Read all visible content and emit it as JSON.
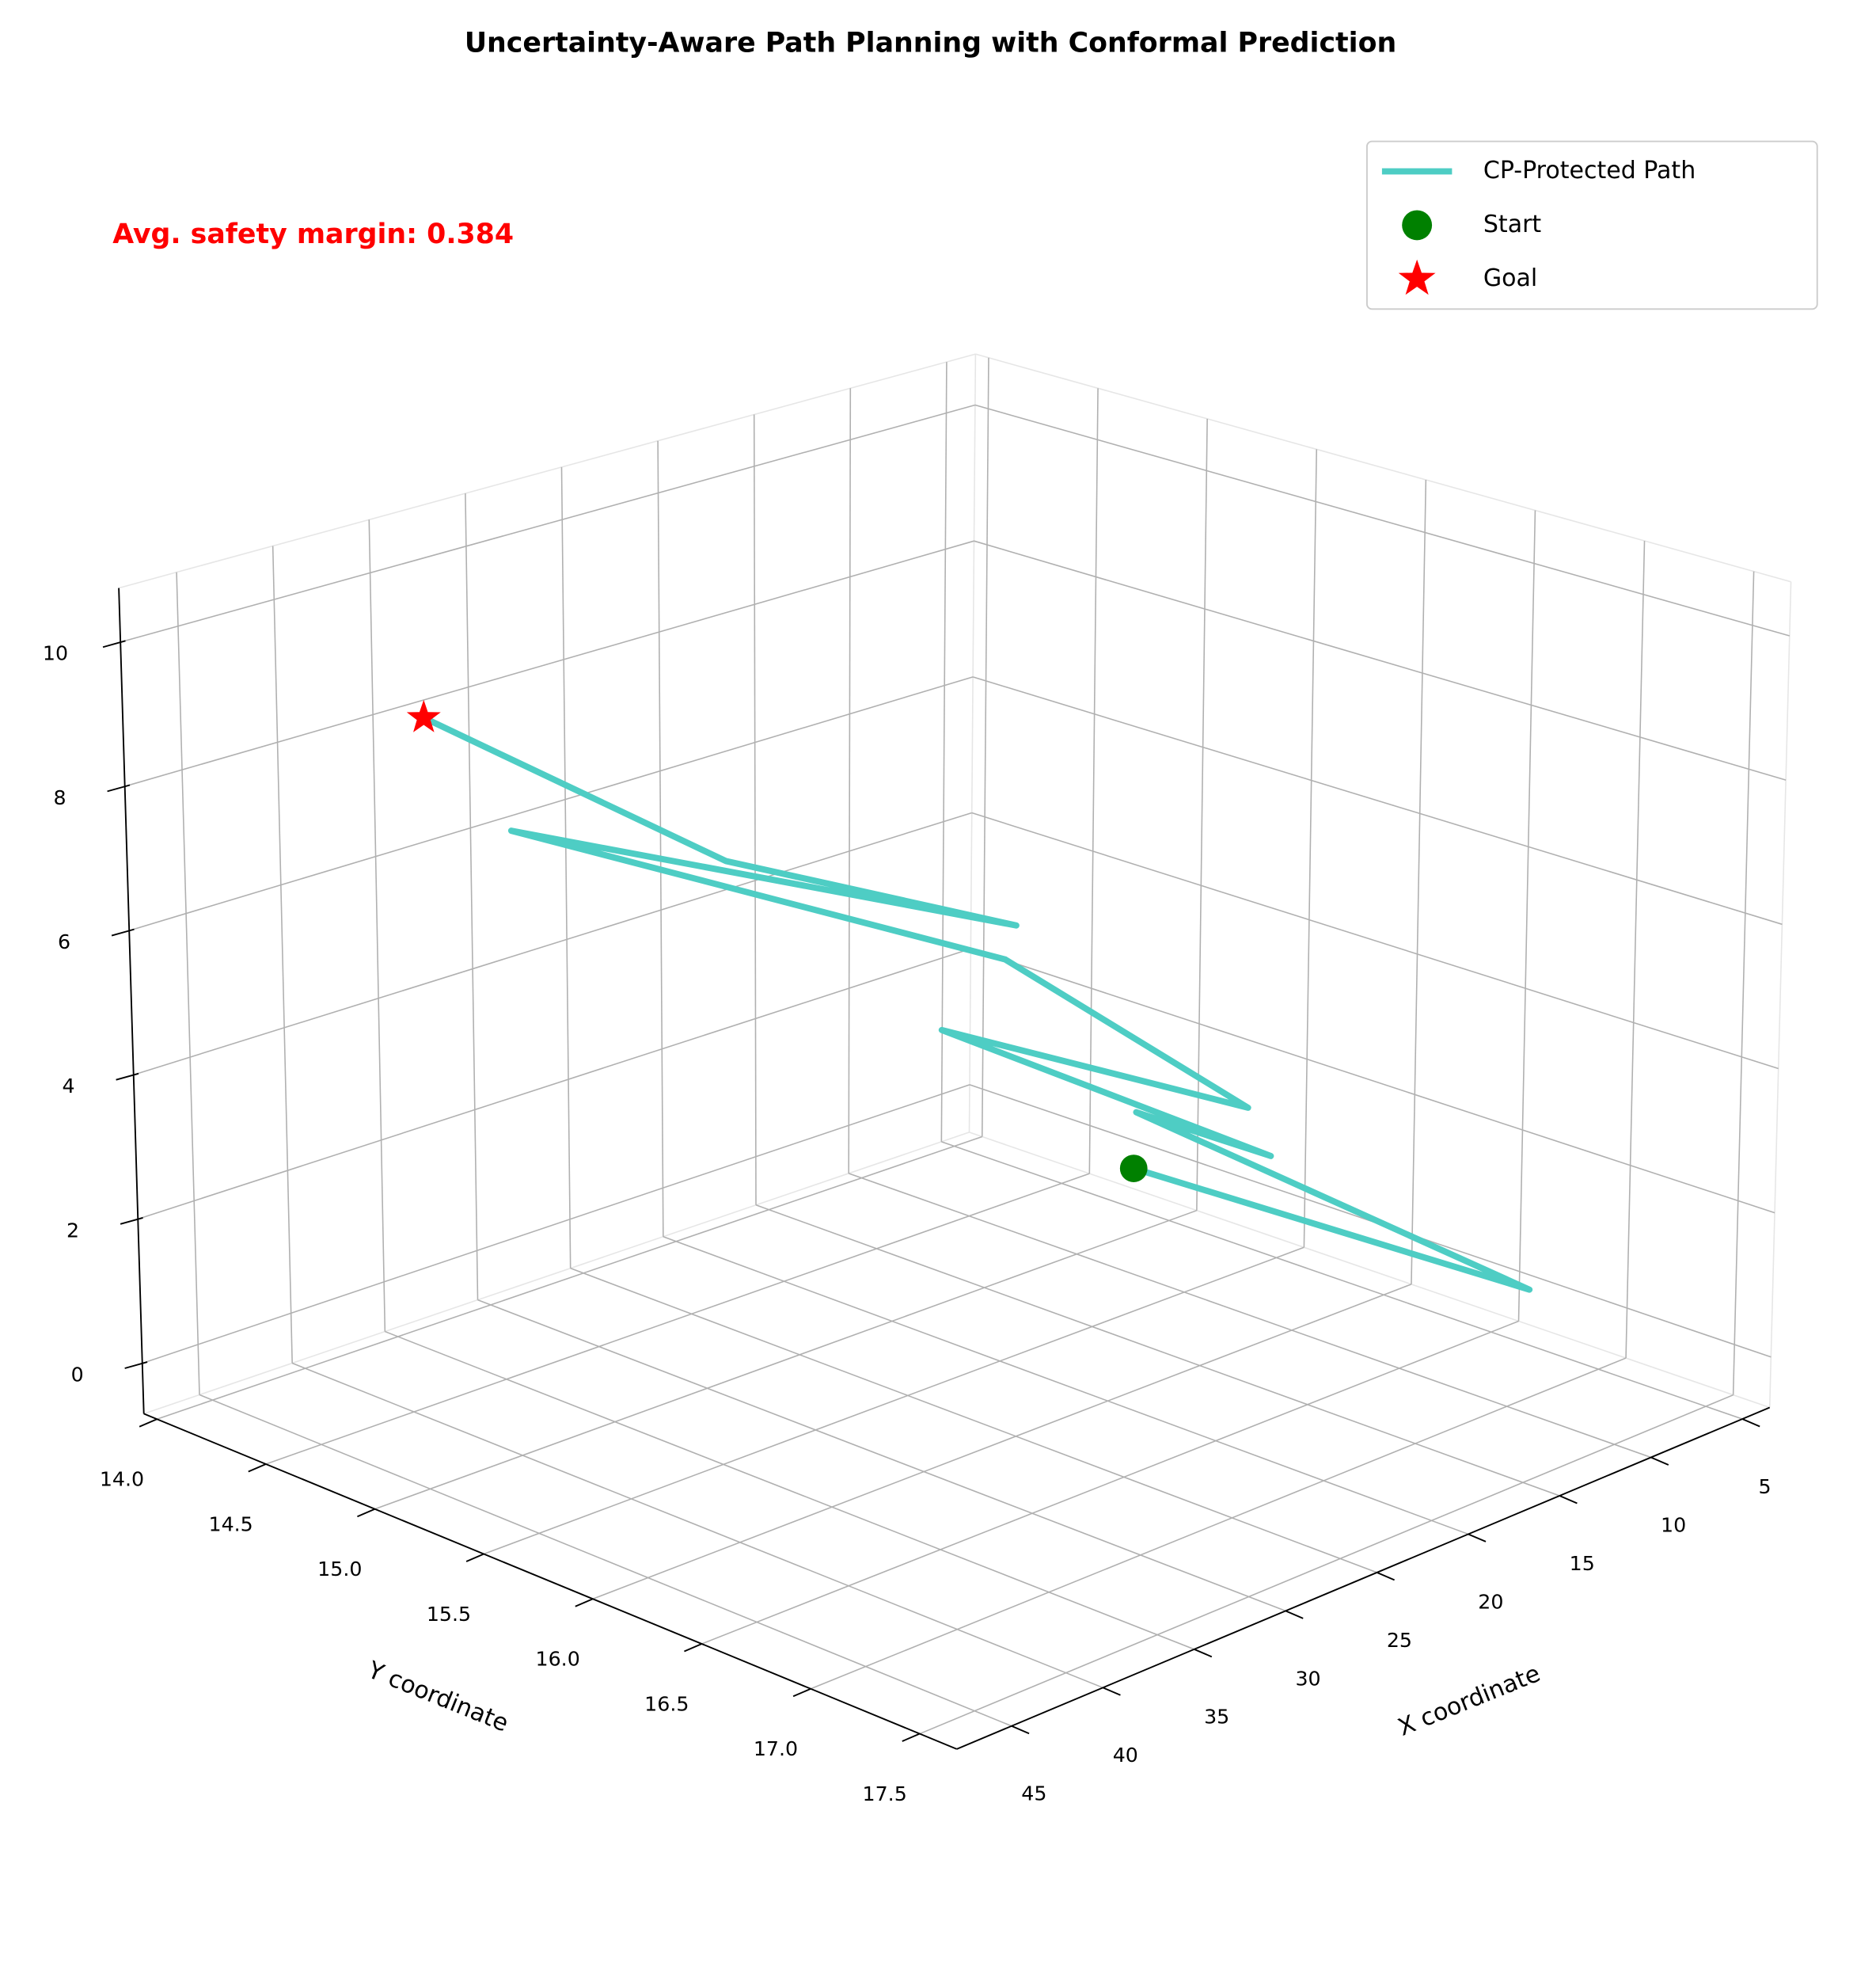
{
  "chart_data": {
    "type": "line3d",
    "title": "Uncertainty-Aware Path Planning with Conformal Prediction",
    "annotation": "Avg. safety margin: 0.384",
    "xlabel": "X coordinate",
    "ylabel": "Y coordinate",
    "series": [
      {
        "name": "CP-Protected Path",
        "color": "#4ecdc4",
        "x": [
          25.75,
          14.6,
          25.75,
          21.3,
          27.97,
          23.5,
          25.75,
          34.65,
          25.75,
          30.2,
          34.65
        ],
        "y": [
          16.6,
          17.48,
          16.61,
          16.85,
          15.91,
          16.93,
          16.01,
          14.53,
          16.06,
          15.12,
          14.14
        ],
        "z": [
          3.71,
          1.88,
          4.49,
          3.72,
          5.09,
          4.67,
          5.97,
          6.97,
          6.49,
          6.8,
          8.14
        ]
      }
    ],
    "markers": [
      {
        "name": "Start",
        "color": "#008000",
        "marker": "circle",
        "x": 25.75,
        "y": 16.6,
        "z": 3.71
      },
      {
        "name": "Goal",
        "color": "#ff0000",
        "marker": "star",
        "x": 34.65,
        "y": 14.14,
        "z": 8.14
      }
    ],
    "xlim": [
      3.5,
      48
    ],
    "ylim": [
      13.94,
      17.67
    ],
    "zlim": [
      -0.7,
      10.75
    ],
    "xticks": [
      5,
      10,
      15,
      20,
      25,
      30,
      35,
      40,
      45
    ],
    "yticks": [
      {
        "value": 14,
        "label": "14.0"
      },
      14.5,
      {
        "value": 15,
        "label": "15.0"
      },
      15.5,
      {
        "value": 16,
        "label": "16.0"
      },
      16.5,
      {
        "value": 17,
        "label": "17.0"
      },
      17.5
    ],
    "zticks": [
      0,
      2,
      4,
      6,
      8,
      10
    ],
    "grid": true,
    "legend": "upper right"
  }
}
